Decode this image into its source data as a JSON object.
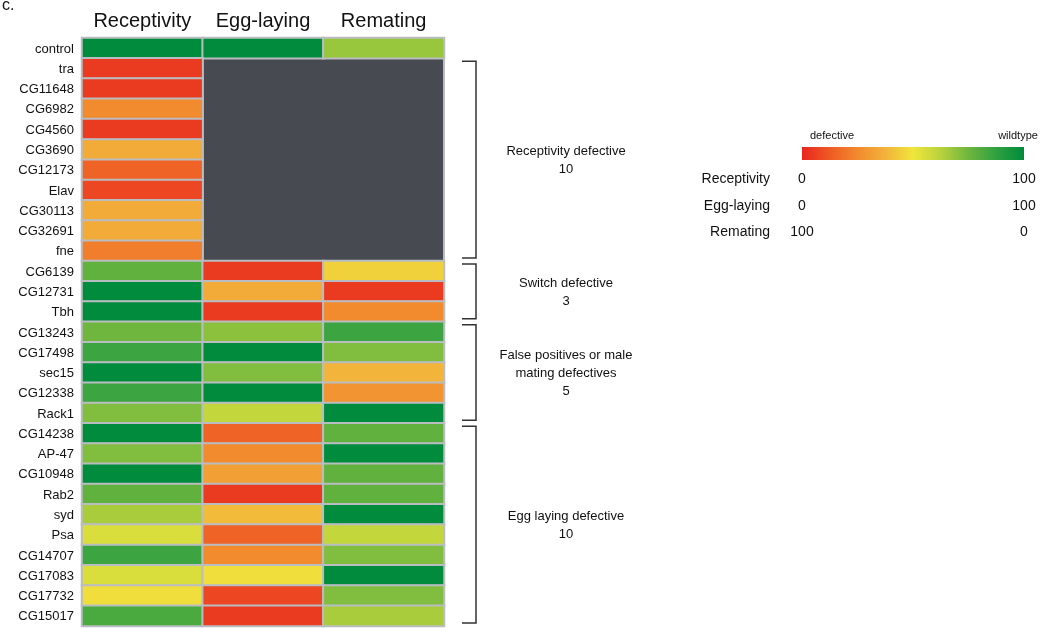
{
  "chart_data": {
    "type": "heatmap",
    "categories": [
      "Receptivity",
      "Egg-laying",
      "Remating"
    ],
    "y_categories": [
      "control",
      "tra",
      "CG11648",
      "CG6982",
      "CG4560",
      "CG3690",
      "CG12173",
      "Elav",
      "CG30113",
      "CG32691",
      "fne",
      "CG6139",
      "CG12731",
      "Tbh",
      "CG13243",
      "CG17498",
      "sec15",
      "CG12338",
      "Rack1",
      "CG14238",
      "AP-47",
      "CG10948",
      "Rab2",
      "syd",
      "Psa",
      "CG14707",
      "CG17083",
      "CG17732",
      "CG15017"
    ],
    "cells": [
      [
        100,
        100,
        68
      ],
      [
        5,
        null,
        null
      ],
      [
        5,
        null,
        null
      ],
      [
        25,
        null,
        null
      ],
      [
        5,
        null,
        null
      ],
      [
        35,
        null,
        null
      ],
      [
        15,
        null,
        null
      ],
      [
        8,
        null,
        null
      ],
      [
        35,
        null,
        null
      ],
      [
        35,
        null,
        null
      ],
      [
        22,
        null,
        null
      ],
      [
        78,
        5,
        45
      ],
      [
        100,
        35,
        5
      ],
      [
        100,
        5,
        25
      ],
      [
        75,
        70,
        85
      ],
      [
        85,
        100,
        72
      ],
      [
        100,
        72,
        38
      ],
      [
        85,
        100,
        28
      ],
      [
        72,
        60,
        100
      ],
      [
        100,
        15,
        78
      ],
      [
        72,
        25,
        100
      ],
      [
        100,
        32,
        78
      ],
      [
        78,
        5,
        78
      ],
      [
        65,
        40,
        100
      ],
      [
        55,
        15,
        60
      ],
      [
        85,
        25,
        72
      ],
      [
        55,
        48,
        100
      ],
      [
        48,
        8,
        72
      ],
      [
        82,
        5,
        65
      ]
    ],
    "clim": [
      0,
      100
    ],
    "cticks": [
      0,
      100
    ],
    "annotations": [
      "c.",
      "defective",
      "wildtype",
      "Receptivity",
      "Egg-laying",
      "Remating",
      "100",
      "0",
      "Receptivity defective\n10",
      "Switch defective\n3",
      "False positives or male\nmating defectives\n5",
      "Egg laying defective\n10"
    ]
  }
}
